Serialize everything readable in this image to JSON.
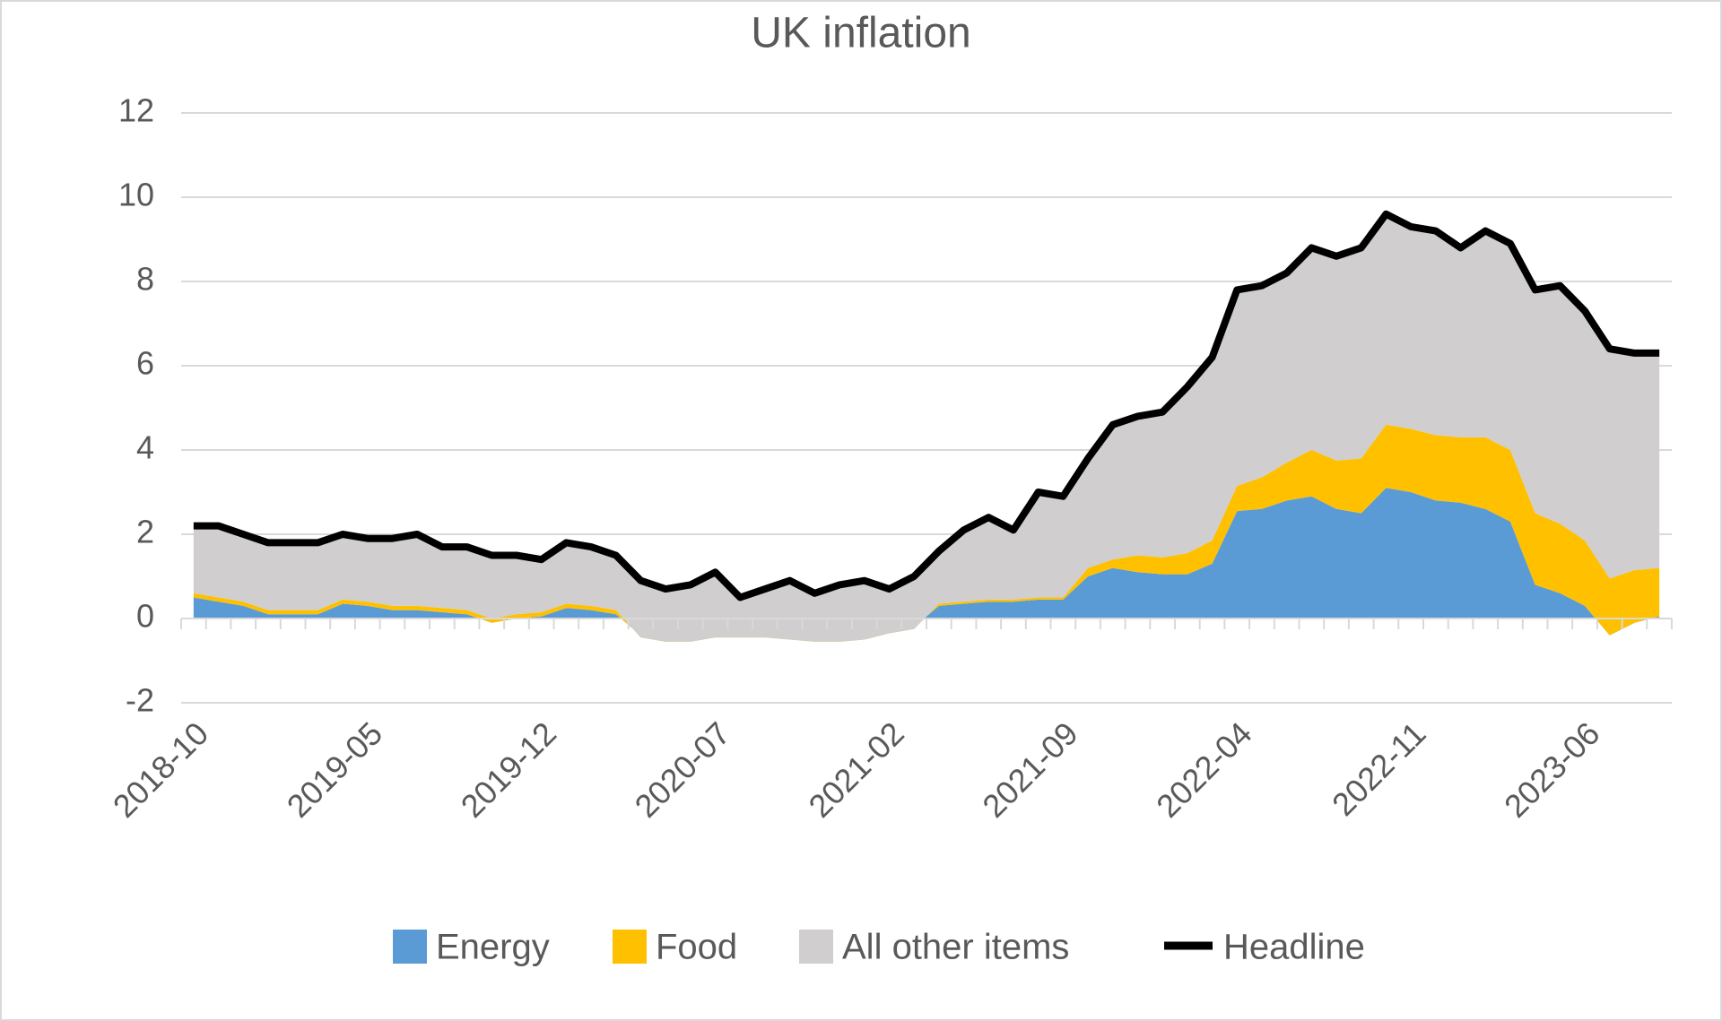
{
  "chart_data": {
    "type": "stacked-area",
    "title": "UK inflation",
    "categories": [
      "2018-10",
      null,
      null,
      null,
      null,
      null,
      null,
      "2019-05",
      null,
      null,
      null,
      null,
      null,
      null,
      "2019-12",
      null,
      null,
      null,
      null,
      null,
      null,
      "2020-07",
      null,
      null,
      null,
      null,
      null,
      null,
      "2021-02",
      null,
      null,
      null,
      null,
      null,
      null,
      "2021-09",
      null,
      null,
      null,
      null,
      null,
      null,
      "2022-04",
      null,
      null,
      null,
      null,
      null,
      null,
      "2022-11",
      null,
      null,
      null,
      null,
      null,
      null,
      "2023-06",
      null,
      null,
      null
    ],
    "series": [
      {
        "name": "Energy",
        "type": "area",
        "color": "#5b9bd5",
        "values": [
          0.5,
          0.4,
          0.3,
          0.1,
          0.1,
          0.1,
          0.35,
          0.3,
          0.2,
          0.2,
          0.15,
          0.1,
          -0.1,
          0,
          0.05,
          0.25,
          0.2,
          0.1,
          -0.4,
          -0.5,
          -0.5,
          -0.4,
          -0.4,
          -0.4,
          -0.45,
          -0.5,
          -0.5,
          -0.45,
          -0.3,
          -0.2,
          0.3,
          0.35,
          0.4,
          0.4,
          0.45,
          0.45,
          1.0,
          1.2,
          1.1,
          1.05,
          1.05,
          1.3,
          2.55,
          2.6,
          2.8,
          2.9,
          2.6,
          2.5,
          3.1,
          3.0,
          2.8,
          2.75,
          2.6,
          2.3,
          0.8,
          0.6,
          0.3,
          -0.4,
          -0.1,
          0.05
        ]
      },
      {
        "name": "Food",
        "type": "area",
        "color": "#ffc000",
        "values": [
          0.1,
          0.1,
          0.1,
          0.1,
          0.1,
          0.1,
          0.1,
          0.1,
          0.1,
          0.1,
          0.1,
          0.1,
          0.1,
          0.1,
          0.1,
          0.1,
          0.1,
          0.1,
          -0.05,
          -0.05,
          -0.05,
          -0.05,
          -0.05,
          -0.05,
          -0.05,
          -0.05,
          -0.05,
          -0.05,
          -0.05,
          -0.05,
          0.05,
          0.05,
          0.05,
          0.05,
          0.05,
          0.05,
          0.2,
          0.2,
          0.4,
          0.4,
          0.5,
          0.55,
          0.6,
          0.75,
          0.9,
          1.1,
          1.15,
          1.3,
          1.5,
          1.5,
          1.55,
          1.55,
          1.7,
          1.7,
          1.7,
          1.65,
          1.55,
          1.35,
          1.25,
          1.15
        ]
      },
      {
        "name": "All other items",
        "type": "area",
        "color": "#d0cece",
        "values": [
          1.6,
          1.7,
          1.6,
          1.6,
          1.6,
          1.6,
          1.55,
          1.5,
          1.6,
          1.7,
          1.45,
          1.5,
          1.5,
          1.4,
          1.25,
          1.45,
          1.4,
          1.3,
          1.35,
          1.25,
          1.35,
          1.55,
          0.95,
          1.15,
          1.4,
          1.15,
          1.35,
          1.4,
          1.05,
          1.25,
          1.25,
          1.7,
          1.95,
          1.65,
          2.5,
          2.4,
          2.6,
          3.2,
          3.3,
          3.45,
          3.95,
          4.35,
          4.65,
          4.55,
          4.5,
          4.8,
          4.85,
          5.0,
          5.0,
          4.8,
          4.85,
          4.5,
          4.9,
          4.9,
          5.3,
          5.65,
          5.45,
          5.45,
          5.15,
          5.1
        ]
      },
      {
        "name": "Headline",
        "type": "line",
        "color": "#000000",
        "values": [
          2.2,
          2.2,
          2.0,
          1.8,
          1.8,
          1.8,
          2.0,
          1.9,
          1.9,
          2.0,
          1.7,
          1.7,
          1.5,
          1.5,
          1.4,
          1.8,
          1.7,
          1.5,
          0.9,
          0.7,
          0.8,
          1.1,
          0.5,
          0.7,
          0.9,
          0.6,
          0.8,
          0.9,
          0.7,
          1.0,
          1.6,
          2.1,
          2.4,
          2.1,
          3.0,
          2.9,
          3.8,
          4.6,
          4.8,
          4.9,
          5.5,
          6.2,
          7.8,
          7.9,
          8.2,
          8.8,
          8.6,
          8.8,
          9.6,
          9.3,
          9.2,
          8.8,
          9.2,
          8.9,
          7.8,
          7.9,
          7.3,
          6.4,
          6.3,
          6.3
        ]
      }
    ],
    "ylim": [
      -2,
      12
    ],
    "yticks": [
      -2,
      0,
      2,
      4,
      6,
      8,
      10,
      12
    ],
    "grid": true,
    "legend": "bottom"
  }
}
